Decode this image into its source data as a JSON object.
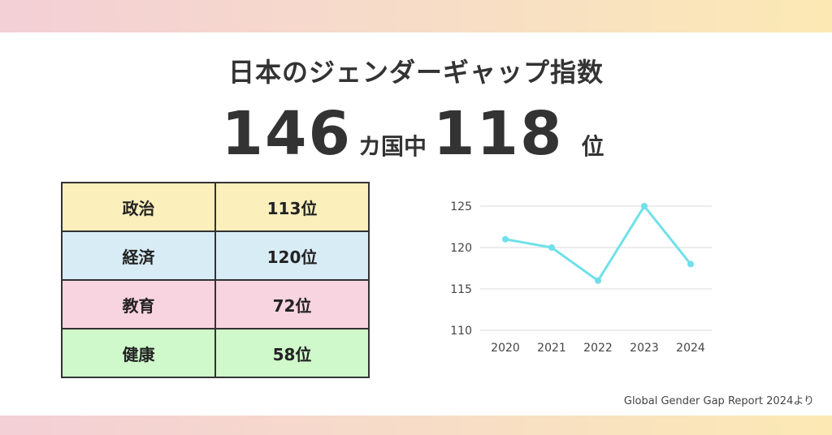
{
  "title": "日本のジェンダーギャップ指数",
  "rank": {
    "total": "146",
    "total_suffix": "カ国中",
    "position": "118",
    "position_suffix": "位"
  },
  "categories": [
    {
      "label": "政治",
      "value": "113位",
      "bg": "#fbefbb"
    },
    {
      "label": "経済",
      "value": "120位",
      "bg": "#d8ecf6"
    },
    {
      "label": "教育",
      "value": "72位",
      "bg": "#f7d4e0"
    },
    {
      "label": "健康",
      "value": "58位",
      "bg": "#cff8cb"
    }
  ],
  "chart_data": {
    "type": "line",
    "title": "",
    "xlabel": "",
    "ylabel": "",
    "categories": [
      "2020",
      "2021",
      "2022",
      "2023",
      "2024"
    ],
    "values": [
      121,
      120,
      116,
      125,
      118
    ],
    "ylim": [
      110,
      125
    ],
    "yticks": [
      "110",
      "115",
      "120",
      "125"
    ],
    "grid": true,
    "color": "#6fe0ea"
  },
  "source": "Global Gender Gap Report 2024より"
}
